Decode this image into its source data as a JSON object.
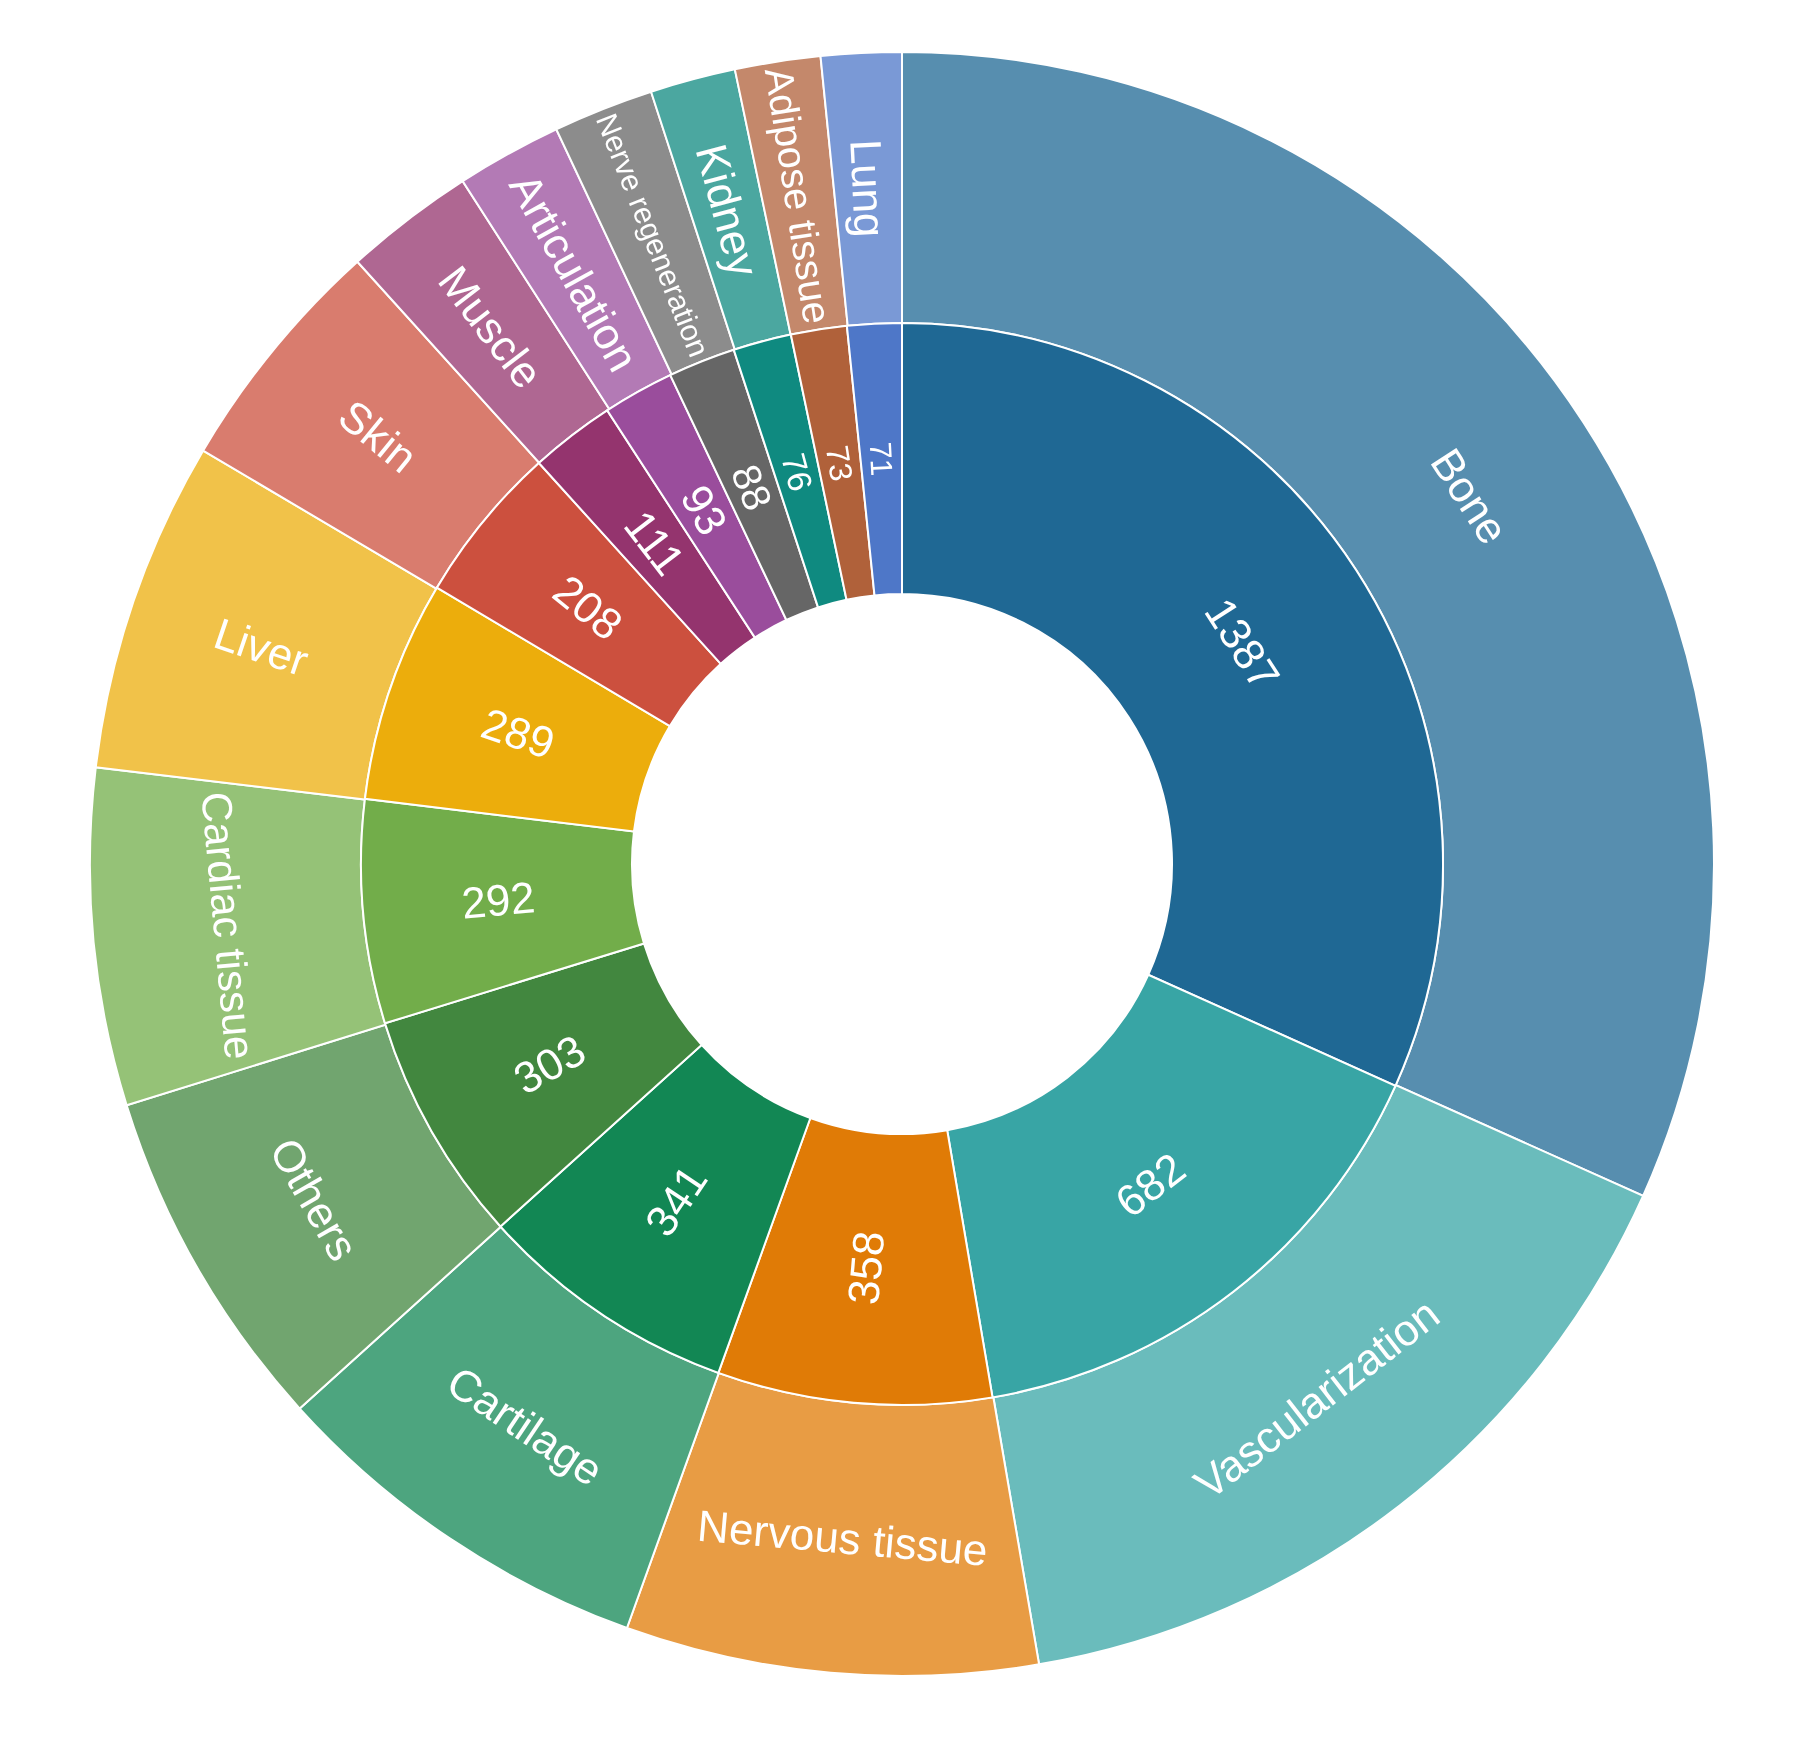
{
  "chart_data": {
    "type": "donut",
    "categories": [
      "Bone",
      "Vascularization",
      "Nervous tissue",
      "Cartilage",
      "Others",
      "Cardiac tissue",
      "Liver",
      "Skin",
      "Muscle",
      "Articulation",
      "Nerve regeneration",
      "Kidney",
      "Adipose tissue",
      "Lung"
    ],
    "series": [
      {
        "values": [
          31.7,
          15.6,
          8.2,
          7.8,
          6.9,
          6.7,
          6.6,
          4.8,
          2.6,
          2.1,
          2.0,
          1.7,
          1.7,
          1.6
        ],
        "colors": [
          "#578eaf",
          "#6abcbc",
          "#e89c44",
          "#4da57f",
          "#71a56f",
          "#95c277",
          "#f1c249",
          "#d97c6e",
          "#af6792",
          "#b37ab5",
          "#8c8c8c",
          "#4ba7a0",
          "#c4886b",
          "#7a99d6"
        ]
      },
      {
        "values": [
          1387,
          682,
          358,
          341,
          303,
          292,
          289,
          208,
          111,
          93,
          88,
          76,
          73,
          71
        ],
        "colors": [
          "#1f6894",
          "#38a5a5",
          "#e07b06",
          "#128754",
          "#42873f",
          "#72ad4a",
          "#ecad0c",
          "#cc503e",
          "#94346e",
          "#9a4d9c",
          "#666666",
          "#0f8a80",
          "#b0613a",
          "#4e77c8"
        ],
        "data_labels": true
      }
    ]
  }
}
